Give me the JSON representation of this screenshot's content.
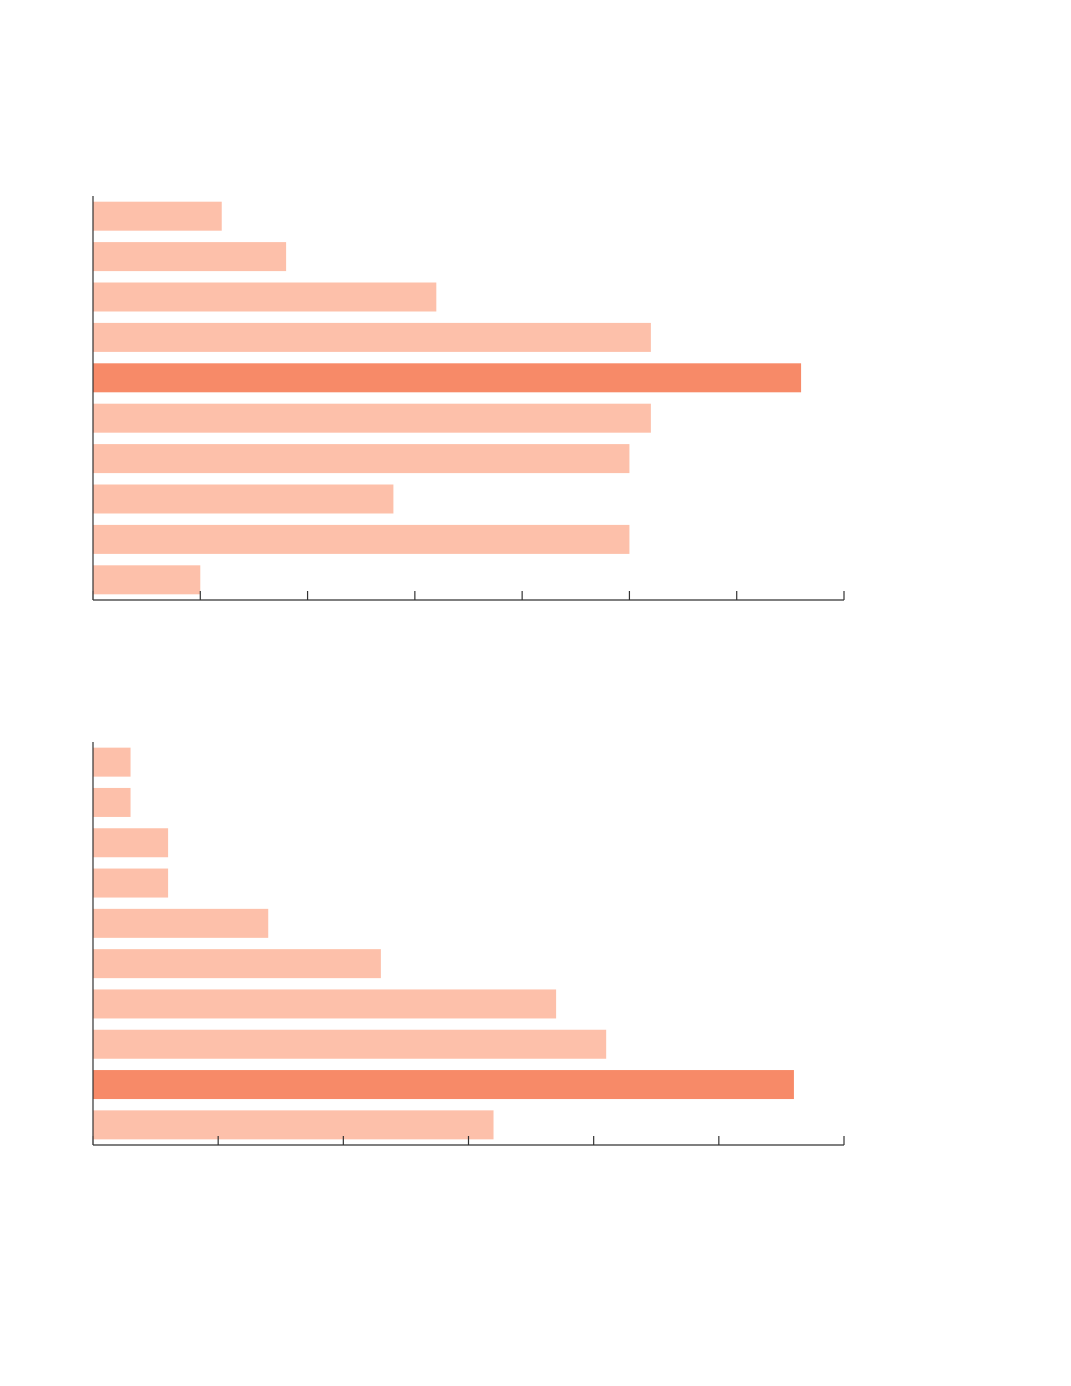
{
  "chart_data": [
    {
      "type": "barh",
      "values": [
        1.2,
        1.8,
        3.2,
        5.2,
        6.6,
        5.2,
        5.0,
        2.8,
        5.0,
        1.0
      ],
      "colors": [
        "#fdc0aa",
        "#fdc0aa",
        "#fdc0aa",
        "#fdc0aa",
        "#f78a68",
        "#fdc0aa",
        "#fdc0aa",
        "#fdc0aa",
        "#fdc0aa",
        "#fdc0aa"
      ],
      "xlim": [
        0,
        7
      ],
      "xticks": [
        0,
        1,
        2,
        3,
        4,
        5,
        6,
        7
      ]
    },
    {
      "type": "barh",
      "values": [
        0.3,
        0.3,
        0.6,
        0.6,
        1.4,
        2.3,
        3.7,
        4.1,
        5.6,
        3.2
      ],
      "colors": [
        "#fdc0aa",
        "#fdc0aa",
        "#fdc0aa",
        "#fdc0aa",
        "#fdc0aa",
        "#fdc0aa",
        "#fdc0aa",
        "#fdc0aa",
        "#f78a68",
        "#fdc0aa"
      ],
      "xlim": [
        0,
        6
      ],
      "xticks": [
        0,
        1,
        2,
        3,
        4,
        5,
        6
      ]
    }
  ]
}
